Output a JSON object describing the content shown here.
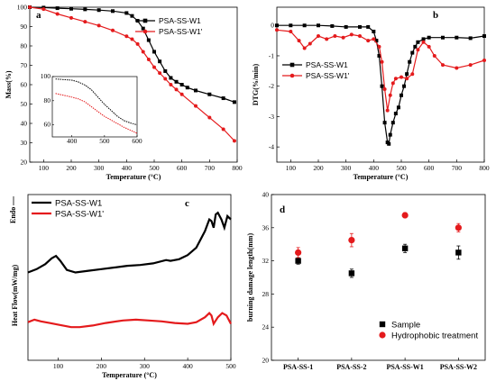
{
  "figure": {
    "colors": {
      "black": "#000000",
      "red": "#e41a1c"
    }
  },
  "chart_data": [
    {
      "panel": "a",
      "type": "line",
      "xlabel": "Temperature (°C)",
      "ylabel": "Mass(%)",
      "xlim": [
        50,
        800
      ],
      "ylim": [
        20,
        100
      ],
      "xticks": [
        100,
        200,
        300,
        400,
        500,
        600,
        700,
        800
      ],
      "yticks": [
        20,
        30,
        40,
        50,
        60,
        70,
        80,
        90,
        100
      ],
      "legend": "top-right",
      "series": [
        {
          "name": "PSA-SS-W1",
          "color": "#000000",
          "marker": "square",
          "x": [
            50,
            100,
            150,
            200,
            250,
            300,
            350,
            400,
            420,
            440,
            460,
            480,
            500,
            520,
            540,
            560,
            580,
            600,
            620,
            650,
            700,
            750,
            790
          ],
          "y": [
            100,
            99.8,
            99.5,
            99.2,
            98.9,
            98.5,
            98.0,
            97.0,
            95.5,
            93,
            89,
            83,
            77,
            72,
            67,
            63.5,
            61.5,
            60,
            58.5,
            57,
            55,
            53,
            51
          ]
        },
        {
          "name": "PSA-SS-W1'",
          "color": "#e41a1c",
          "marker": "circle",
          "x": [
            50,
            100,
            150,
            200,
            250,
            300,
            350,
            400,
            420,
            440,
            460,
            480,
            500,
            520,
            540,
            560,
            580,
            600,
            650,
            700,
            750,
            790
          ],
          "y": [
            100,
            99.0,
            96.5,
            94.5,
            92.5,
            90.5,
            88,
            85,
            83.5,
            81,
            77,
            73,
            69,
            66,
            63,
            60,
            57.5,
            55,
            49,
            43,
            37,
            31
          ]
        }
      ],
      "inset": {
        "xlim": [
          340,
          600
        ],
        "ylim": [
          50,
          100
        ],
        "xticks": [
          400,
          500,
          600
        ],
        "yticks": [
          60,
          80,
          100
        ]
      }
    },
    {
      "panel": "b",
      "type": "line",
      "xlabel": "Temperature (°C)",
      "ylabel": "DTG(%/min)",
      "xlim": [
        50,
        800
      ],
      "ylim": [
        -4.5,
        0.6
      ],
      "xticks": [
        100,
        200,
        300,
        400,
        500,
        600,
        700,
        800
      ],
      "yticks": [
        -4,
        -3,
        -2,
        -1,
        0
      ],
      "legend": "left",
      "series": [
        {
          "name": "PSA-SS-W1",
          "color": "#000000",
          "marker": "square",
          "x": [
            50,
            100,
            150,
            200,
            250,
            300,
            350,
            380,
            400,
            410,
            420,
            430,
            440,
            450,
            455,
            460,
            470,
            480,
            490,
            500,
            510,
            520,
            530,
            540,
            550,
            560,
            580,
            600,
            650,
            700,
            750,
            800
          ],
          "y": [
            0,
            0,
            0,
            0,
            -0.02,
            -0.05,
            -0.05,
            -0.05,
            -0.2,
            -0.5,
            -1.0,
            -2.0,
            -3.2,
            -3.85,
            -3.9,
            -3.6,
            -3.2,
            -2.9,
            -2.7,
            -2.3,
            -2.0,
            -1.6,
            -1.2,
            -0.9,
            -0.7,
            -0.55,
            -0.45,
            -0.4,
            -0.4,
            -0.4,
            -0.42,
            -0.35
          ]
        },
        {
          "name": "PSA-SS-W1'",
          "color": "#e41a1c",
          "marker": "circle",
          "x": [
            50,
            100,
            130,
            150,
            170,
            200,
            230,
            260,
            290,
            320,
            350,
            380,
            400,
            420,
            430,
            440,
            450,
            460,
            470,
            480,
            500,
            520,
            540,
            560,
            580,
            600,
            620,
            650,
            700,
            750,
            800
          ],
          "y": [
            -0.15,
            -0.2,
            -0.5,
            -0.75,
            -0.6,
            -0.35,
            -0.45,
            -0.35,
            -0.4,
            -0.3,
            -0.35,
            -0.5,
            -0.45,
            -0.7,
            -1.2,
            -2.1,
            -2.8,
            -2.3,
            -1.9,
            -1.75,
            -1.7,
            -1.75,
            -1.6,
            -0.8,
            -0.55,
            -0.7,
            -1.0,
            -1.3,
            -1.4,
            -1.3,
            -1.15
          ]
        }
      ]
    },
    {
      "panel": "c",
      "type": "line",
      "xlabel": "Temperature (°C)",
      "ylabel": "Heat Flow(mW/mg)",
      "corner_label": "Endo",
      "xlim": [
        30,
        500
      ],
      "ylim": [
        0,
        1
      ],
      "xticks": [
        100,
        200,
        300,
        400,
        500
      ],
      "legend": "top-left",
      "series": [
        {
          "name": "PSA-SS-W1",
          "color": "#000000",
          "x": [
            30,
            50,
            70,
            85,
            95,
            105,
            120,
            140,
            170,
            200,
            230,
            260,
            290,
            320,
            350,
            360,
            380,
            400,
            420,
            440,
            450,
            455,
            460,
            465,
            470,
            478,
            485,
            492,
            500
          ],
          "y": [
            0.53,
            0.55,
            0.58,
            0.615,
            0.63,
            0.6,
            0.545,
            0.53,
            0.54,
            0.55,
            0.56,
            0.57,
            0.575,
            0.585,
            0.605,
            0.6,
            0.61,
            0.635,
            0.68,
            0.78,
            0.85,
            0.84,
            0.8,
            0.88,
            0.89,
            0.85,
            0.8,
            0.87,
            0.85
          ]
        },
        {
          "name": "PSA-SS-W1'",
          "color": "#e41a1c",
          "x": [
            30,
            45,
            60,
            80,
            100,
            130,
            150,
            180,
            210,
            250,
            280,
            310,
            340,
            370,
            400,
            420,
            440,
            450,
            455,
            460,
            470,
            480,
            490,
            500
          ],
          "y": [
            0.23,
            0.245,
            0.235,
            0.225,
            0.215,
            0.2,
            0.2,
            0.21,
            0.225,
            0.24,
            0.245,
            0.24,
            0.235,
            0.225,
            0.22,
            0.23,
            0.26,
            0.285,
            0.27,
            0.22,
            0.26,
            0.285,
            0.27,
            0.22
          ]
        }
      ]
    },
    {
      "panel": "d",
      "type": "scatter",
      "ylabel": "burning damage length(mm)",
      "ylim": [
        20,
        40
      ],
      "yticks": [
        20,
        24,
        28,
        32,
        36,
        40
      ],
      "categories": [
        "PSA-SS-1",
        "PSA-SS-2",
        "PSA-SS-W1",
        "PSA-SS-W2"
      ],
      "legend": "bottom-right",
      "series": [
        {
          "name": "Sample",
          "color": "#000000",
          "marker": "square",
          "values": [
            32.0,
            30.5,
            33.5,
            33.0
          ],
          "errors": [
            0.4,
            0.5,
            0.5,
            0.8
          ]
        },
        {
          "name": "Hydrophobic treatment",
          "color": "#e41a1c",
          "marker": "circle",
          "values": [
            33.0,
            34.5,
            37.5,
            36.0
          ],
          "errors": [
            0.6,
            0.8,
            0.3,
            0.5
          ]
        }
      ]
    }
  ]
}
